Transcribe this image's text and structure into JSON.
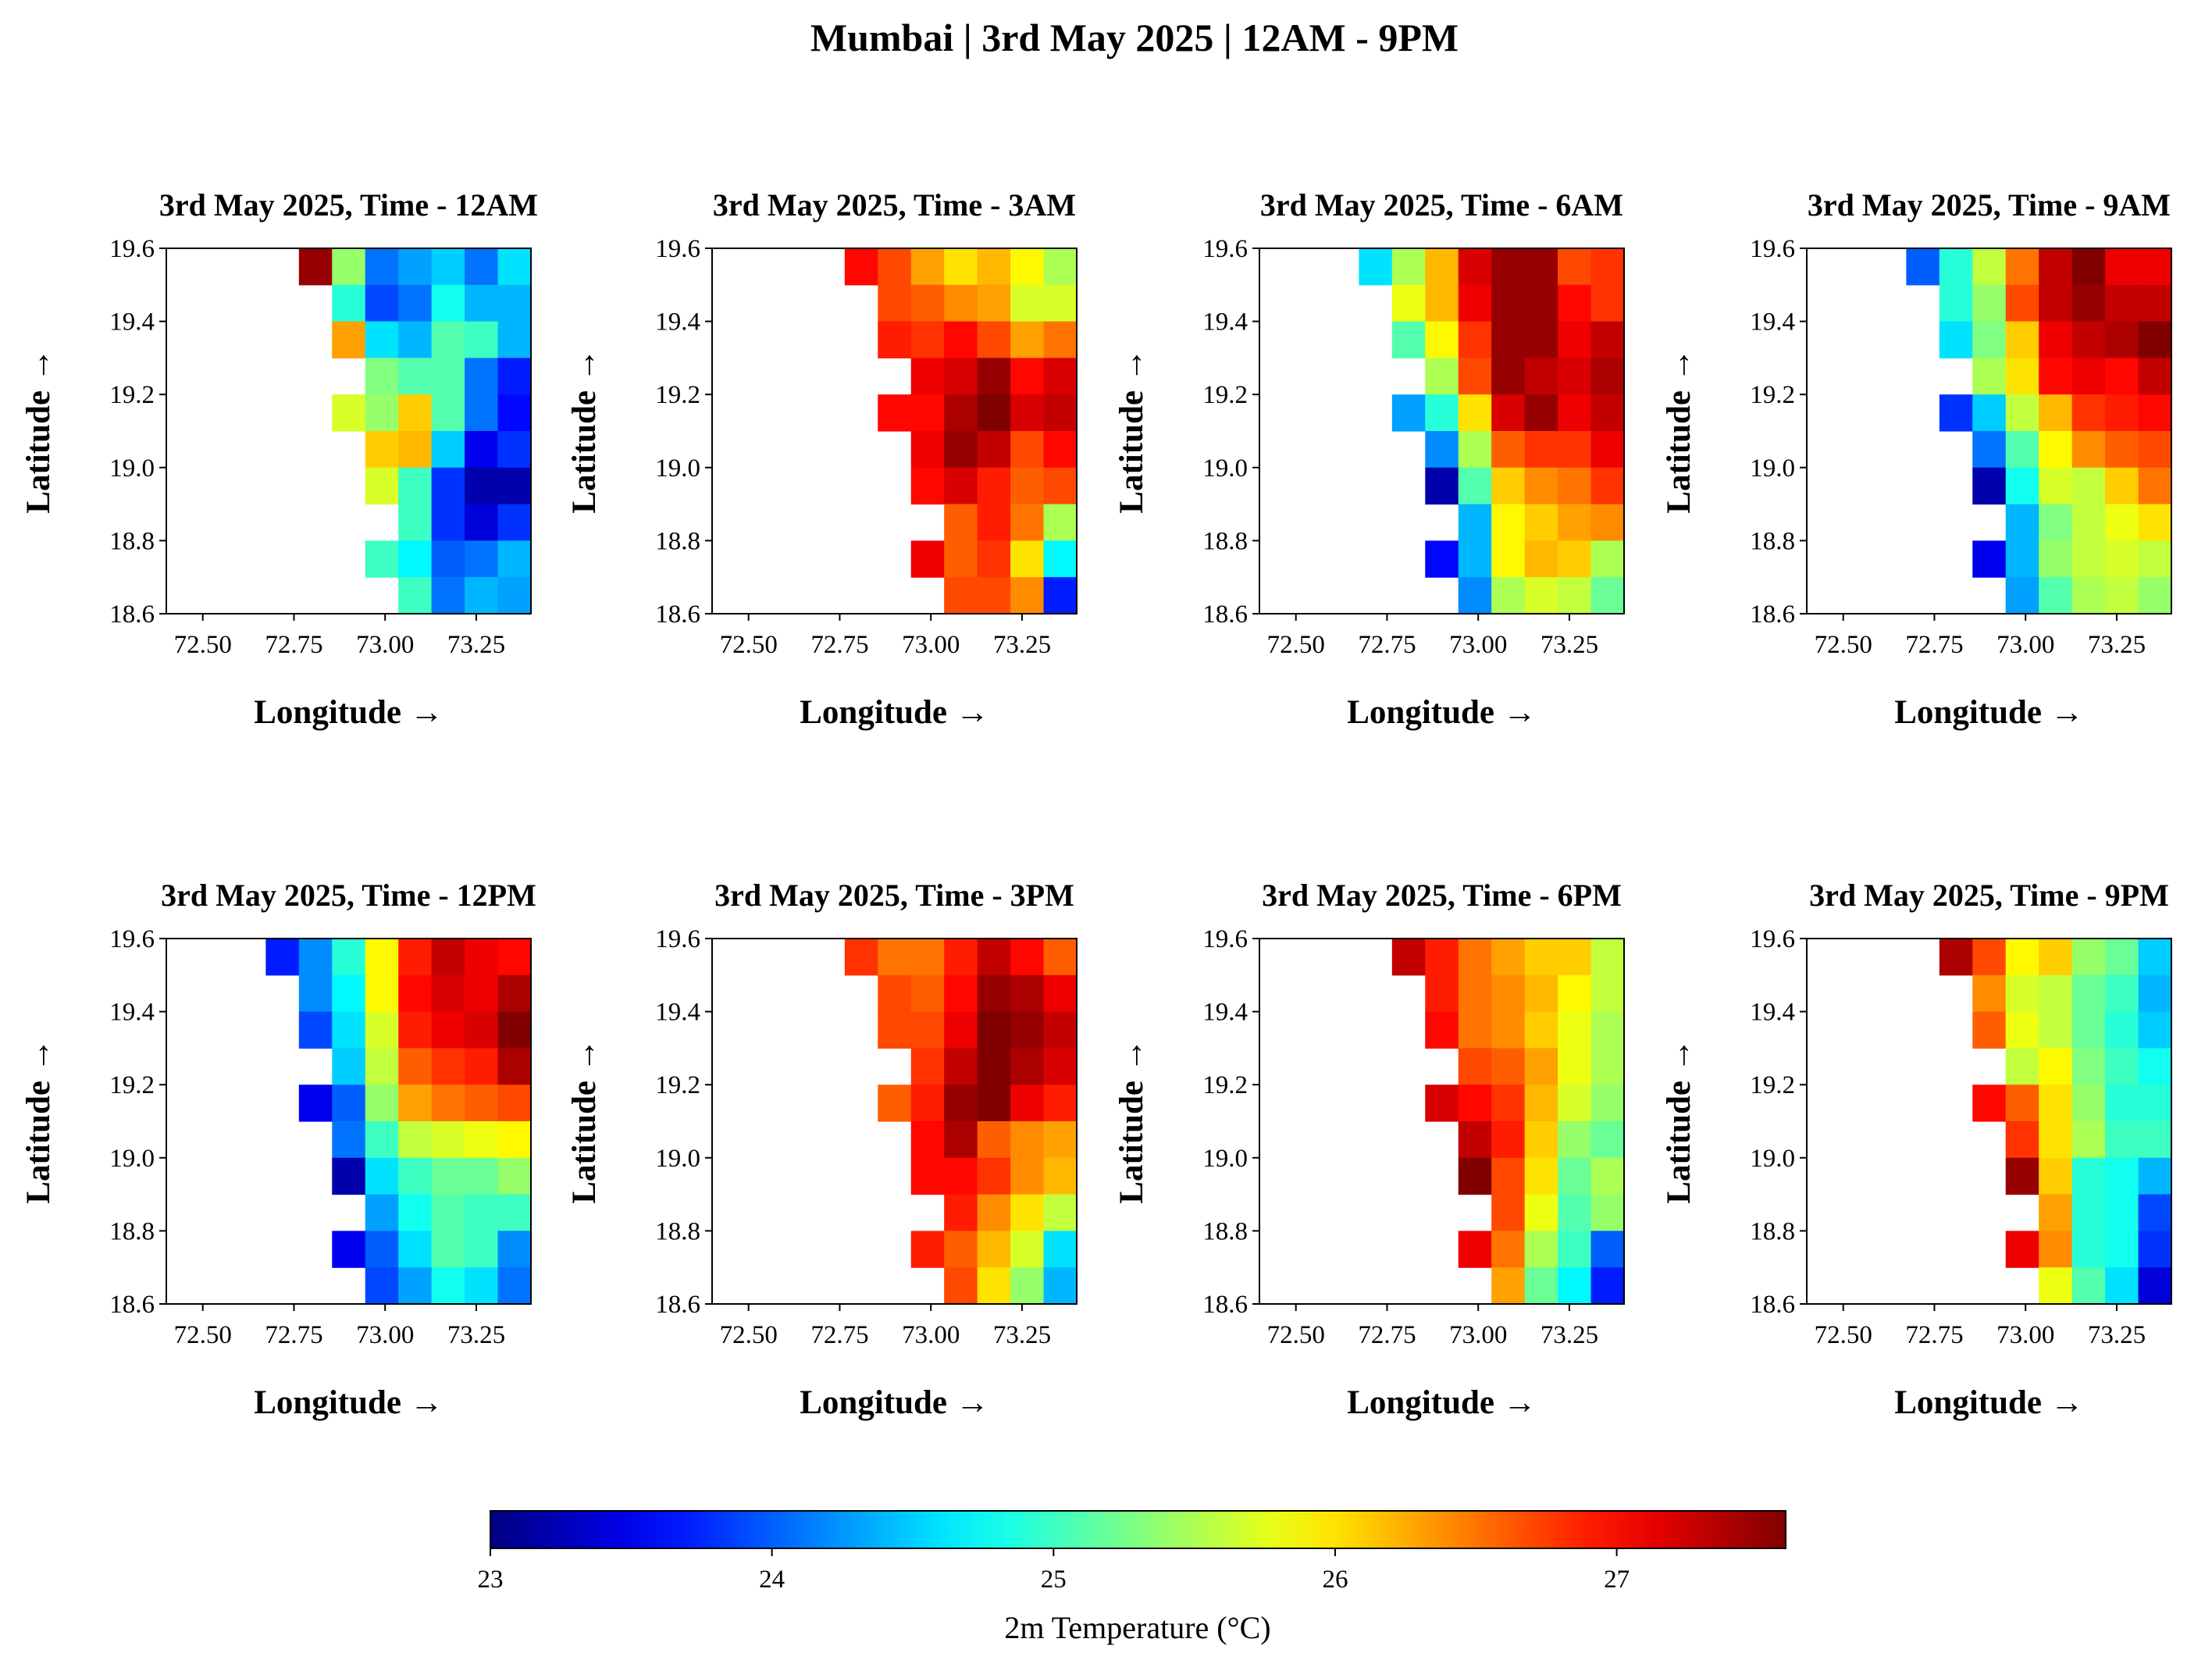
{
  "title": "Mumbai | 3rd May 2025 | 12AM - 9PM",
  "colorbar": {
    "label": "2m Temperature (°C)",
    "ticks": [
      "23",
      "24",
      "25",
      "26",
      "27"
    ],
    "colormap": "jet",
    "vmin": 23.0,
    "vmax": 27.6
  },
  "axes_text": {
    "xlabel": "Longitude →",
    "ylabel": "Latitude →",
    "xticks": [
      "72.50",
      "72.75",
      "73.00",
      "73.25"
    ],
    "yticks": [
      "18.6",
      "18.8",
      "19.0",
      "19.2",
      "19.4",
      "19.6"
    ]
  },
  "chart_data": {
    "type": "heatmap",
    "grid_note": "rows from north (19.6) to south (18.6), columns from west (72.375) to east (73.375); null = no data (sea)",
    "xlim": [
      72.4,
      73.4
    ],
    "ylim": [
      18.6,
      19.6
    ],
    "lon_centers": [
      72.4,
      72.49,
      72.58,
      72.67,
      72.77,
      72.86,
      72.95,
      73.04,
      73.13,
      73.22,
      73.32
    ],
    "lat_centers": [
      19.55,
      19.45,
      19.35,
      19.25,
      19.15,
      19.05,
      18.95,
      18.85,
      18.75,
      18.65
    ],
    "panels": [
      {
        "title": "3rd May 2025, Time - 12AM",
        "values": [
          [
            null,
            null,
            null,
            null,
            27.5,
            25.4,
            24.1,
            24.3,
            24.5,
            24.1,
            24.6
          ],
          [
            null,
            null,
            null,
            null,
            null,
            24.9,
            23.9,
            24.1,
            24.8,
            24.4,
            24.4
          ],
          [
            null,
            null,
            null,
            null,
            null,
            26.3,
            24.6,
            24.4,
            25.1,
            25.0,
            24.4
          ],
          [
            null,
            null,
            null,
            null,
            null,
            null,
            25.3,
            25.1,
            25.1,
            24.1,
            23.7
          ],
          [
            null,
            null,
            null,
            null,
            null,
            25.7,
            25.4,
            26.1,
            25.1,
            24.1,
            23.6
          ],
          [
            null,
            null,
            null,
            null,
            null,
            null,
            26.1,
            26.2,
            24.5,
            23.5,
            23.8
          ],
          [
            null,
            null,
            null,
            null,
            null,
            null,
            25.7,
            25.0,
            23.8,
            23.2,
            23.2
          ],
          [
            null,
            null,
            null,
            null,
            null,
            null,
            null,
            25.0,
            23.8,
            23.4,
            23.8
          ],
          [
            null,
            null,
            null,
            null,
            null,
            null,
            25.0,
            24.7,
            24.0,
            24.1,
            24.4
          ],
          [
            null,
            null,
            null,
            null,
            null,
            null,
            null,
            25.0,
            24.1,
            24.4,
            24.3
          ]
        ]
      },
      {
        "title": "3rd May 2025, Time - 3AM",
        "values": [
          [
            null,
            null,
            null,
            null,
            27.0,
            26.7,
            26.3,
            26.0,
            26.2,
            25.9,
            25.5
          ],
          [
            null,
            null,
            null,
            null,
            null,
            26.7,
            26.6,
            26.4,
            26.3,
            25.7,
            25.7
          ],
          [
            null,
            null,
            null,
            null,
            null,
            26.9,
            26.8,
            27.0,
            26.7,
            26.3,
            26.5
          ],
          [
            null,
            null,
            null,
            null,
            null,
            null,
            27.1,
            27.2,
            27.5,
            27.0,
            27.2
          ],
          [
            null,
            null,
            null,
            null,
            null,
            27.0,
            27.0,
            27.4,
            27.6,
            27.2,
            27.3
          ],
          [
            null,
            null,
            null,
            null,
            null,
            null,
            27.1,
            27.5,
            27.3,
            26.7,
            27.0
          ],
          [
            null,
            null,
            null,
            null,
            null,
            null,
            27.0,
            27.2,
            26.9,
            26.6,
            26.7
          ],
          [
            null,
            null,
            null,
            null,
            null,
            null,
            null,
            26.6,
            26.9,
            26.5,
            25.5
          ],
          [
            null,
            null,
            null,
            null,
            null,
            null,
            27.1,
            26.6,
            26.8,
            26.0,
            24.7
          ],
          [
            null,
            null,
            null,
            null,
            null,
            null,
            null,
            26.7,
            26.7,
            26.4,
            23.7
          ]
        ]
      },
      {
        "title": "3rd May 2025, Time - 6AM",
        "values": [
          [
            null,
            null,
            null,
            24.6,
            25.5,
            26.2,
            27.2,
            27.5,
            27.5,
            26.7,
            26.8
          ],
          [
            null,
            null,
            null,
            null,
            25.8,
            26.2,
            27.1,
            27.5,
            27.5,
            27.0,
            26.8
          ],
          [
            null,
            null,
            null,
            null,
            25.1,
            25.9,
            26.8,
            27.5,
            27.5,
            27.1,
            27.3
          ],
          [
            null,
            null,
            null,
            null,
            null,
            25.5,
            26.7,
            27.5,
            27.3,
            27.2,
            27.4
          ],
          [
            null,
            null,
            null,
            null,
            24.3,
            24.9,
            26.0,
            27.2,
            27.5,
            27.1,
            27.3
          ],
          [
            null,
            null,
            null,
            null,
            null,
            24.2,
            25.5,
            26.6,
            26.8,
            26.8,
            27.1
          ],
          [
            null,
            null,
            null,
            null,
            null,
            23.2,
            25.1,
            26.1,
            26.4,
            26.5,
            26.8
          ],
          [
            null,
            null,
            null,
            null,
            null,
            null,
            24.4,
            25.9,
            26.1,
            26.3,
            26.4
          ],
          [
            null,
            null,
            null,
            null,
            null,
            23.6,
            24.4,
            25.9,
            26.2,
            26.1,
            25.5
          ],
          [
            null,
            null,
            null,
            null,
            null,
            null,
            24.2,
            25.5,
            25.7,
            25.6,
            25.2
          ]
        ]
      },
      {
        "title": "3rd May 2025, Time - 9AM",
        "values": [
          [
            null,
            null,
            null,
            24.0,
            24.9,
            25.6,
            26.5,
            27.3,
            27.6,
            27.1,
            27.1
          ],
          [
            null,
            null,
            null,
            null,
            24.9,
            25.4,
            26.7,
            27.3,
            27.5,
            27.3,
            27.3
          ],
          [
            null,
            null,
            null,
            null,
            24.6,
            25.3,
            26.1,
            27.1,
            27.3,
            27.4,
            27.6
          ],
          [
            null,
            null,
            null,
            null,
            null,
            25.5,
            26.0,
            27.0,
            27.1,
            27.0,
            27.3
          ],
          [
            null,
            null,
            null,
            null,
            23.8,
            24.5,
            25.6,
            26.2,
            26.8,
            26.9,
            27.0
          ],
          [
            null,
            null,
            null,
            null,
            null,
            24.1,
            25.1,
            25.9,
            26.4,
            26.6,
            26.7
          ],
          [
            null,
            null,
            null,
            null,
            null,
            23.2,
            24.8,
            25.7,
            25.6,
            26.1,
            26.5
          ],
          [
            null,
            null,
            null,
            null,
            null,
            null,
            24.4,
            25.3,
            25.6,
            25.8,
            26.0
          ],
          [
            null,
            null,
            null,
            null,
            null,
            23.5,
            24.4,
            25.4,
            25.6,
            25.7,
            25.6
          ],
          [
            null,
            null,
            null,
            null,
            null,
            null,
            24.3,
            25.1,
            25.5,
            25.6,
            25.4
          ]
        ]
      },
      {
        "title": "3rd May 2025, Time - 12PM",
        "values": [
          [
            null,
            null,
            null,
            23.7,
            24.2,
            24.9,
            25.9,
            26.9,
            27.3,
            27.1,
            27.0
          ],
          [
            null,
            null,
            null,
            null,
            24.2,
            24.7,
            25.9,
            27.0,
            27.2,
            27.1,
            27.4
          ],
          [
            null,
            null,
            null,
            null,
            23.9,
            24.6,
            25.7,
            26.9,
            27.1,
            27.2,
            27.6
          ],
          [
            null,
            null,
            null,
            null,
            null,
            24.5,
            25.6,
            26.6,
            26.8,
            26.9,
            27.4
          ],
          [
            null,
            null,
            null,
            null,
            23.5,
            24.0,
            25.4,
            26.3,
            26.5,
            26.6,
            26.7
          ],
          [
            null,
            null,
            null,
            null,
            null,
            24.1,
            25.0,
            25.6,
            25.7,
            25.8,
            25.9
          ],
          [
            null,
            null,
            null,
            null,
            null,
            23.2,
            24.6,
            25.0,
            25.2,
            25.2,
            25.4
          ],
          [
            null,
            null,
            null,
            null,
            null,
            null,
            24.3,
            24.8,
            25.1,
            25.0,
            25.0
          ],
          [
            null,
            null,
            null,
            null,
            null,
            23.5,
            24.0,
            24.6,
            25.1,
            25.0,
            24.2
          ],
          [
            null,
            null,
            null,
            null,
            null,
            null,
            23.9,
            24.3,
            24.8,
            24.6,
            24.1
          ]
        ]
      },
      {
        "title": "3rd May 2025, Time - 3PM",
        "values": [
          [
            null,
            null,
            null,
            null,
            26.8,
            26.5,
            26.5,
            26.9,
            27.3,
            27.0,
            26.6
          ],
          [
            null,
            null,
            null,
            null,
            null,
            26.7,
            26.6,
            27.0,
            27.5,
            27.4,
            27.1
          ],
          [
            null,
            null,
            null,
            null,
            null,
            26.7,
            26.7,
            27.1,
            27.6,
            27.5,
            27.3
          ],
          [
            null,
            null,
            null,
            null,
            null,
            null,
            26.8,
            27.3,
            27.6,
            27.4,
            27.2
          ],
          [
            null,
            null,
            null,
            null,
            null,
            26.6,
            26.9,
            27.5,
            27.6,
            27.1,
            26.9
          ],
          [
            null,
            null,
            null,
            null,
            null,
            null,
            27.0,
            27.4,
            26.6,
            26.4,
            26.3
          ],
          [
            null,
            null,
            null,
            null,
            null,
            null,
            27.0,
            27.0,
            26.8,
            26.4,
            26.2
          ],
          [
            null,
            null,
            null,
            null,
            null,
            null,
            null,
            26.9,
            26.4,
            26.0,
            25.6
          ],
          [
            null,
            null,
            null,
            null,
            null,
            null,
            26.9,
            26.6,
            26.2,
            25.7,
            24.6
          ],
          [
            null,
            null,
            null,
            null,
            null,
            null,
            null,
            26.7,
            26.0,
            25.4,
            24.4
          ]
        ]
      },
      {
        "title": "3rd May 2025, Time - 6PM",
        "values": [
          [
            null,
            null,
            null,
            null,
            27.3,
            26.9,
            26.5,
            26.3,
            26.1,
            26.1,
            25.6
          ],
          [
            null,
            null,
            null,
            null,
            null,
            26.9,
            26.5,
            26.4,
            26.2,
            25.9,
            25.6
          ],
          [
            null,
            null,
            null,
            null,
            null,
            27.0,
            26.5,
            26.4,
            26.1,
            25.8,
            25.5
          ],
          [
            null,
            null,
            null,
            null,
            null,
            null,
            26.7,
            26.6,
            26.3,
            25.8,
            25.5
          ],
          [
            null,
            null,
            null,
            null,
            null,
            27.2,
            27.0,
            26.8,
            26.2,
            25.7,
            25.4
          ],
          [
            null,
            null,
            null,
            null,
            null,
            null,
            27.3,
            26.9,
            26.1,
            25.4,
            25.2
          ],
          [
            null,
            null,
            null,
            null,
            null,
            null,
            27.6,
            26.7,
            26.0,
            25.2,
            25.5
          ],
          [
            null,
            null,
            null,
            null,
            null,
            null,
            null,
            26.7,
            25.8,
            25.1,
            25.4
          ],
          [
            null,
            null,
            null,
            null,
            null,
            null,
            27.1,
            26.5,
            25.5,
            25.0,
            24.0
          ],
          [
            null,
            null,
            null,
            null,
            null,
            null,
            null,
            26.3,
            25.2,
            24.7,
            23.7
          ]
        ]
      },
      {
        "title": "3rd May 2025, Time - 9PM",
        "values": [
          [
            null,
            null,
            null,
            null,
            27.4,
            26.7,
            25.9,
            26.1,
            25.4,
            25.2,
            24.5
          ],
          [
            null,
            null,
            null,
            null,
            null,
            26.4,
            25.7,
            25.6,
            25.2,
            25.0,
            24.4
          ],
          [
            null,
            null,
            null,
            null,
            null,
            26.6,
            25.8,
            25.6,
            25.2,
            24.9,
            24.5
          ],
          [
            null,
            null,
            null,
            null,
            null,
            null,
            25.6,
            25.9,
            25.3,
            25.0,
            24.8
          ],
          [
            null,
            null,
            null,
            null,
            null,
            27.0,
            26.6,
            26.0,
            25.4,
            24.9,
            24.9
          ],
          [
            null,
            null,
            null,
            null,
            null,
            null,
            26.8,
            26.0,
            25.5,
            25.0,
            25.0
          ],
          [
            null,
            null,
            null,
            null,
            null,
            null,
            27.5,
            26.1,
            24.9,
            24.8,
            24.4
          ],
          [
            null,
            null,
            null,
            null,
            null,
            null,
            null,
            26.3,
            24.9,
            24.8,
            23.9
          ],
          [
            null,
            null,
            null,
            null,
            null,
            null,
            27.1,
            26.4,
            24.9,
            24.8,
            23.8
          ],
          [
            null,
            null,
            null,
            null,
            null,
            null,
            null,
            25.8,
            25.1,
            24.6,
            23.4
          ]
        ]
      }
    ]
  }
}
